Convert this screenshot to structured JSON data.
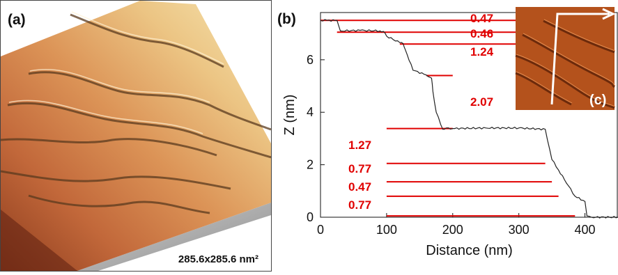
{
  "panel_a": {
    "tag": "(a)",
    "scale_label": "285.6x285.6 nm²"
  },
  "panel_b": {
    "tag": "(b)",
    "inset_tag": "(c)",
    "step_labels": [
      "0.47",
      "0.46",
      "1.24",
      "2.07",
      "1.27",
      "0.77",
      "0.47",
      "0.77"
    ],
    "colors": {
      "profile": "#222222",
      "step_lines": "#e00000",
      "step_text": "#e00000"
    }
  },
  "chart_data": {
    "type": "line",
    "title": "",
    "xlabel": "Distance (nm)",
    "ylabel": "Z (nm)",
    "xlim": [
      0,
      450
    ],
    "ylim": [
      0,
      7.8
    ],
    "xticks": [
      0,
      100,
      200,
      300,
      400
    ],
    "yticks": [
      0,
      2,
      4,
      6
    ],
    "grid": false,
    "series": [
      {
        "x": [
          0,
          10,
          25,
          30,
          60,
          90,
          95,
          100,
          120,
          125,
          128,
          140,
          160,
          168,
          170,
          175,
          185,
          190,
          200,
          250,
          300,
          340,
          350,
          360,
          375,
          385,
          400,
          403,
          410,
          450
        ],
        "y": [
          7.5,
          7.5,
          7.5,
          7.1,
          7.12,
          7.1,
          7.08,
          6.9,
          6.65,
          6.62,
          6.4,
          5.6,
          5.42,
          5.3,
          4.8,
          4.0,
          3.35,
          3.4,
          3.38,
          3.4,
          3.4,
          3.35,
          2.2,
          1.8,
          1.2,
          0.8,
          0.6,
          0.05,
          0.0,
          0.0
        ]
      }
    ],
    "step_levels": [
      {
        "y": 7.5,
        "x": [
          0,
          390
        ]
      },
      {
        "y": 7.05,
        "x": [
          25,
          390
        ]
      },
      {
        "y": 6.6,
        "x": [
          120,
          390
        ]
      },
      {
        "y": 5.4,
        "x": [
          160,
          200
        ]
      },
      {
        "y": 3.38,
        "x": [
          100,
          200
        ]
      },
      {
        "y": 2.05,
        "x": [
          100,
          340
        ]
      },
      {
        "y": 1.35,
        "x": [
          100,
          350
        ]
      },
      {
        "y": 0.8,
        "x": [
          100,
          360
        ]
      },
      {
        "y": 0.05,
        "x": [
          100,
          385
        ]
      }
    ]
  }
}
